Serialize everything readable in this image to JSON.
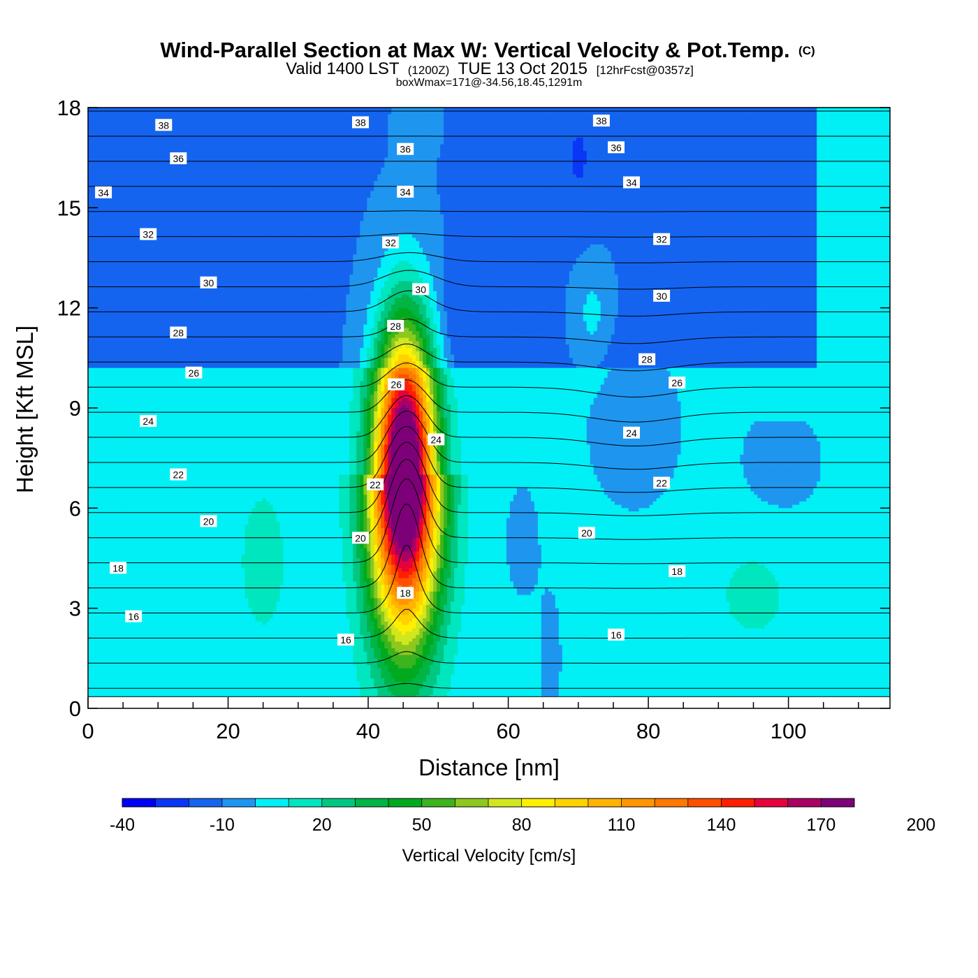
{
  "chart_data": {
    "type": "heatmap",
    "title": "Wind-Parallel Section at Max W: Vertical Velocity & Pot.Temp.",
    "title_mark": "(C)",
    "subtitle_parts": [
      "Valid 1400 LST",
      "(1200Z)",
      "TUE 13 Oct 2015",
      "[12hrFcst@0357z]"
    ],
    "subtitle2": "boxWmax=171@-34.56,18.45,1291m",
    "xlabel": "Distance [nm]",
    "ylabel": "Height [Kft MSL]",
    "xlim": [
      0,
      114.5
    ],
    "ylim": [
      0,
      18
    ],
    "terrain_top": 0.35,
    "x_ticks": [
      0,
      20,
      40,
      60,
      80,
      100
    ],
    "x_tick_labels": [
      "0",
      "20",
      "40",
      "60",
      "80",
      "100"
    ],
    "x_minor_step": 5,
    "y_ticks": [
      0,
      3,
      6,
      9,
      12,
      15,
      18
    ],
    "y_tick_labels": [
      "0",
      "3",
      "6",
      "9",
      "12",
      "15",
      "18"
    ],
    "colorbar": {
      "title": "Vertical Velocity [cm/s]",
      "levels_min": -40,
      "level_step": 10,
      "tick_labels": [
        "-40",
        "-10",
        "20",
        "50",
        "80",
        "110",
        "140",
        "170",
        "200"
      ],
      "tick_values": [
        -40,
        -10,
        20,
        50,
        80,
        110,
        140,
        170,
        200
      ],
      "colors": [
        "#0000f5",
        "#0a37f5",
        "#1464f0",
        "#1e96f0",
        "#00f0f5",
        "#00e6be",
        "#00c882",
        "#00b446",
        "#00aa1e",
        "#3cb41e",
        "#8cc81e",
        "#d2e61e",
        "#fff000",
        "#ffd200",
        "#ffb400",
        "#ff9600",
        "#ff7800",
        "#ff5000",
        "#ff1e00",
        "#e6003c",
        "#aa0064",
        "#7d0078"
      ]
    },
    "contour_interval": 1,
    "contour_labels": [
      {
        "value": "38",
        "x": 10.8,
        "y": 17.47
      },
      {
        "value": "38",
        "x": 38.9,
        "y": 17.55
      },
      {
        "value": "38",
        "x": 73.3,
        "y": 17.6
      },
      {
        "value": "36",
        "x": 12.9,
        "y": 16.47
      },
      {
        "value": "36",
        "x": 45.3,
        "y": 16.75
      },
      {
        "value": "36",
        "x": 75.4,
        "y": 16.8
      },
      {
        "value": "34",
        "x": 2.2,
        "y": 15.45
      },
      {
        "value": "34",
        "x": 45.3,
        "y": 15.47
      },
      {
        "value": "34",
        "x": 77.6,
        "y": 15.75
      },
      {
        "value": "32",
        "x": 8.6,
        "y": 14.2
      },
      {
        "value": "32",
        "x": 43.2,
        "y": 13.95
      },
      {
        "value": "32",
        "x": 81.9,
        "y": 14.05
      },
      {
        "value": "30",
        "x": 17.2,
        "y": 12.75
      },
      {
        "value": "30",
        "x": 47.5,
        "y": 12.55
      },
      {
        "value": "30",
        "x": 81.9,
        "y": 12.35
      },
      {
        "value": "28",
        "x": 12.9,
        "y": 11.25
      },
      {
        "value": "28",
        "x": 43.9,
        "y": 11.45
      },
      {
        "value": "28",
        "x": 79.8,
        "y": 10.45
      },
      {
        "value": "26",
        "x": 15.1,
        "y": 10.05
      },
      {
        "value": "26",
        "x": 44.0,
        "y": 9.7
      },
      {
        "value": "26",
        "x": 84.1,
        "y": 9.75
      },
      {
        "value": "24",
        "x": 8.6,
        "y": 8.6
      },
      {
        "value": "24",
        "x": 49.7,
        "y": 8.05
      },
      {
        "value": "24",
        "x": 77.6,
        "y": 8.25
      },
      {
        "value": "22",
        "x": 12.9,
        "y": 7.0
      },
      {
        "value": "22",
        "x": 41.0,
        "y": 6.7
      },
      {
        "value": "22",
        "x": 81.9,
        "y": 6.75
      },
      {
        "value": "20",
        "x": 17.2,
        "y": 5.6
      },
      {
        "value": "20",
        "x": 38.9,
        "y": 5.1
      },
      {
        "value": "20",
        "x": 71.2,
        "y": 5.25
      },
      {
        "value": "18",
        "x": 4.3,
        "y": 4.2
      },
      {
        "value": "18",
        "x": 45.3,
        "y": 3.45
      },
      {
        "value": "18",
        "x": 84.1,
        "y": 4.1
      },
      {
        "value": "16",
        "x": 6.5,
        "y": 2.75
      },
      {
        "value": "16",
        "x": 36.8,
        "y": 2.05
      },
      {
        "value": "16",
        "x": 75.4,
        "y": 2.2
      }
    ]
  }
}
